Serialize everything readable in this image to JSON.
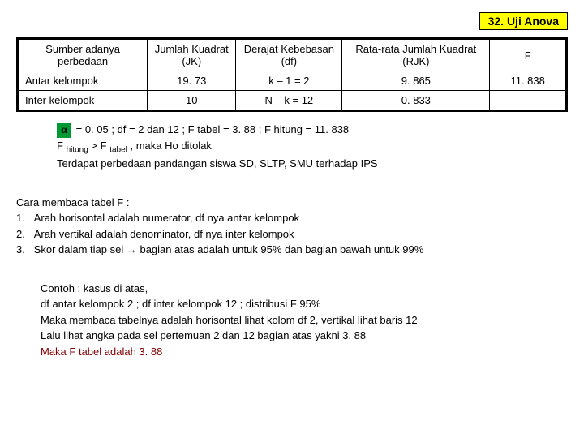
{
  "title": "32. Uji Anova",
  "table": {
    "headers": [
      "Sumber adanya perbedaan",
      "Jumlah Kuadrat (JK)",
      "Derajat Kebebasan (df)",
      "Rata-rata Jumlah Kuadrat (RJK)",
      "F"
    ],
    "rows": [
      [
        "Antar kelompok",
        "19. 73",
        "k – 1 = 2",
        "9. 865",
        "11. 838"
      ],
      [
        "Inter kelompok",
        "10",
        "N – k  = 12",
        "0. 833",
        ""
      ]
    ],
    "col_widths": [
      "22%",
      "15%",
      "18%",
      "25%",
      "13%"
    ]
  },
  "alpha_line": " = 0. 05 ; df = 2 dan 12 ; F tabel = 3. 88 ; F hitung = 11. 838",
  "fhitung_line_a": "F ",
  "fhitung_sub1": "hitung",
  "fhitung_line_b": " > F ",
  "fhitung_sub2": "tabel",
  "fhitung_line_c": " , maka Ho ditolak",
  "conclusion": "Terdapat perbedaan pandangan siswa SD, SLTP, SMU terhadap IPS",
  "section2": {
    "title": "Cara membaca tabel F :",
    "items": [
      "Arah horisontal adalah numerator, df nya antar kelompok",
      "Arah vertikal adalah denominator, df nya inter kelompok",
      "Skor dalam tiap sel → bagian atas adalah untuk 95% dan bagian bawah untuk 99%"
    ]
  },
  "section3": {
    "l1": "Contoh : kasus di atas,",
    "l2": "df antar kelompok 2 ; df inter kelompok 12 ; distribusi F 95%",
    "l3": "Maka membaca tabelnya adalah horisontal lihat kolom df 2, vertikal lihat baris 12",
    "l4": "Lalu lihat angka pada sel pertemuan 2 dan 12 bagian atas yakni 3. 88",
    "l5": "Maka F tabel adalah 3. 88"
  }
}
